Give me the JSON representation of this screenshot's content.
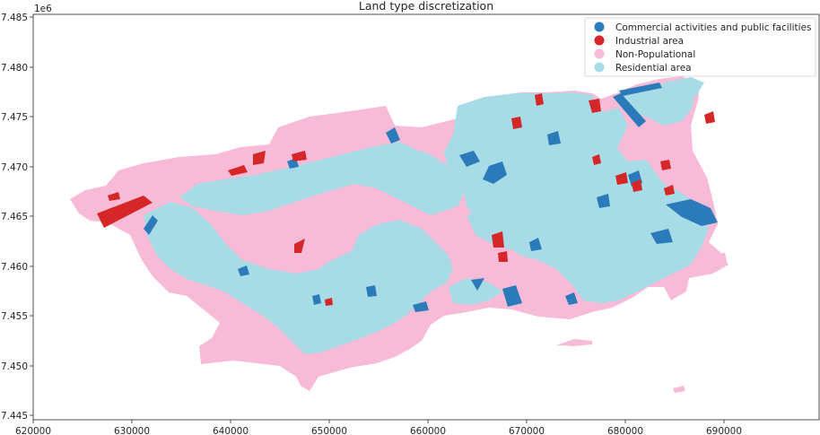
{
  "map": {
    "title": "Land type discretization",
    "y_offset_label": "1e6",
    "x_ticks": [
      "620000",
      "630000",
      "640000",
      "650000",
      "660000",
      "670000",
      "680000",
      "690000"
    ],
    "y_ticks": [
      "7.445",
      "7.450",
      "7.455",
      "7.460",
      "7.465",
      "7.470",
      "7.475",
      "7.480",
      "7.485"
    ],
    "legend": [
      {
        "label": "Commercial activities and public facilities",
        "color": "#2b7bba"
      },
      {
        "label": "Industrial area",
        "color": "#d62728"
      },
      {
        "label": "Non-Populational",
        "color": "#f7bbd8"
      },
      {
        "label": "Residential area",
        "color": "#a7dce6"
      }
    ]
  }
}
